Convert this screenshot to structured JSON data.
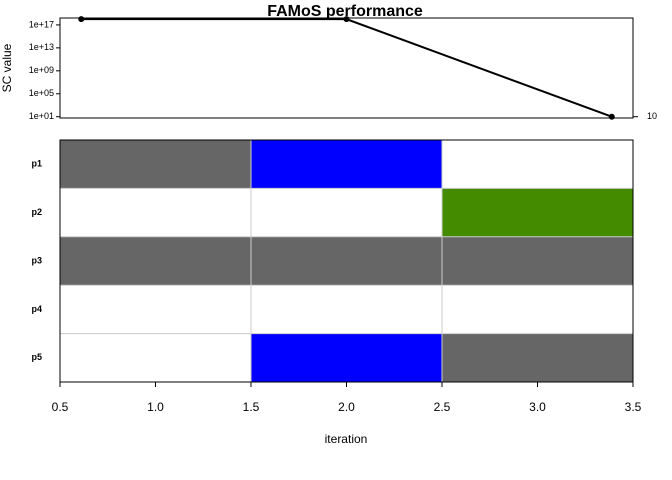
{
  "chart_data": [
    {
      "type": "line",
      "title": "FAMoS performance",
      "y_label": "SC value",
      "x": [
        1,
        2,
        3
      ],
      "values": [
        1e+18,
        1e+18,
        10
      ],
      "color": "#000000",
      "xlim": [
        0.92,
        3.08
      ],
      "ylim": [
        6,
        1.6e+18
      ],
      "log_y": true,
      "yticks": [
        {
          "value": 10,
          "label": "1e+01"
        },
        {
          "value": 100000,
          "label": "1e+05"
        },
        {
          "value": 1000000000,
          "label": "1e+09"
        },
        {
          "value": 10000000000000,
          "label": "1e+13"
        },
        {
          "value": 100000000000000000,
          "label": "1e+17"
        }
      ],
      "y2ticks": [
        10
      ]
    },
    {
      "type": "tile",
      "x_label": "iteration",
      "categories": [
        "p1",
        "p2",
        "p3",
        "p4",
        "p5"
      ],
      "x": [
        1,
        2,
        3
      ],
      "colors": [
        [
          "#666666",
          "#0000ff",
          "#ffffff"
        ],
        [
          "#ffffff",
          "#ffffff",
          "#458b00"
        ],
        [
          "#666666",
          "#666666",
          "#666666"
        ],
        [
          "#ffffff",
          "#ffffff",
          "#ffffff"
        ],
        [
          "#ffffff",
          "#0000ff",
          "#666666"
        ]
      ],
      "xlim": [
        0.5,
        3.5
      ],
      "grid": true,
      "xticks": [
        0.5,
        {
          "value": 1,
          "label": "1.0"
        },
        1.5,
        {
          "value": 2,
          "label": "2.0"
        },
        2.5,
        {
          "value": 3,
          "label": "3.0"
        },
        3.5
      ]
    }
  ]
}
